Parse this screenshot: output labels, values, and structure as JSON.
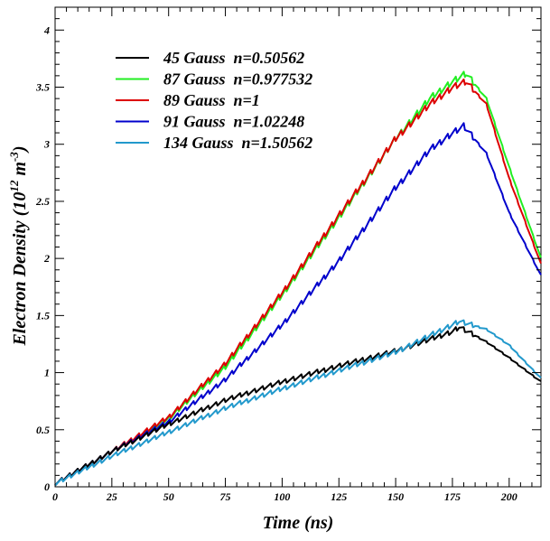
{
  "chart_data": {
    "type": "line",
    "xlabel": "Time (ns)",
    "ylabel_main": "Electron Density (10",
    "ylabel_exp1": "12",
    "ylabel_unit": " m",
    "ylabel_exp2": "-3",
    "ylabel_close": ")",
    "xlim": [
      0,
      214
    ],
    "ylim": [
      0,
      4.2
    ],
    "xticks": [
      0,
      25,
      50,
      75,
      100,
      125,
      150,
      175,
      200
    ],
    "xtick_labels": [
      "0",
      "25",
      "50",
      "75",
      "100",
      "125",
      "150",
      "175",
      "200"
    ],
    "yticks": [
      0,
      0.5,
      1,
      1.5,
      2,
      2.5,
      3,
      3.5,
      4
    ],
    "ytick_labels": [
      "0",
      "0.5",
      "1",
      "1.5",
      "2",
      "2.5",
      "3",
      "3.5",
      "4"
    ],
    "grid": false,
    "legend_position": "top-left",
    "series": [
      {
        "name": "45 Gauss  n=0.50562",
        "color": "#000000",
        "x": [
          0,
          25,
          50,
          75,
          100,
          125,
          150,
          175,
          178,
          190,
          200,
          214
        ],
        "y": [
          0.03,
          0.31,
          0.55,
          0.76,
          0.92,
          1.06,
          1.19,
          1.36,
          1.4,
          1.27,
          1.13,
          0.92
        ]
      },
      {
        "name": "87 Gauss  n=0.977532",
        "color": "#22ee22",
        "x": [
          0,
          25,
          50,
          75,
          100,
          125,
          150,
          165,
          175,
          181,
          190,
          200,
          214
        ],
        "y": [
          0.03,
          0.31,
          0.6,
          1.05,
          1.68,
          2.36,
          3.05,
          3.4,
          3.55,
          3.62,
          3.4,
          2.8,
          2.0
        ]
      },
      {
        "name": "89 Gauss  n=1",
        "color": "#dd0000",
        "x": [
          0,
          25,
          50,
          75,
          100,
          125,
          150,
          165,
          175,
          181,
          190,
          200,
          214
        ],
        "y": [
          0.03,
          0.31,
          0.61,
          1.08,
          1.7,
          2.38,
          3.05,
          3.35,
          3.5,
          3.55,
          3.35,
          2.7,
          1.95
        ]
      },
      {
        "name": "91 Gauss  n=1.02248",
        "color": "#0000cc",
        "x": [
          0,
          25,
          50,
          75,
          100,
          125,
          150,
          165,
          175,
          180,
          190,
          200,
          214
        ],
        "y": [
          0.03,
          0.31,
          0.57,
          0.94,
          1.42,
          1.98,
          2.62,
          2.95,
          3.1,
          3.16,
          2.92,
          2.4,
          1.85
        ]
      },
      {
        "name": "134 Gauss  n=1.50562",
        "color": "#2299cc",
        "x": [
          0,
          25,
          50,
          75,
          100,
          125,
          150,
          175,
          178,
          190,
          200,
          214
        ],
        "y": [
          0.03,
          0.27,
          0.48,
          0.69,
          0.86,
          1.02,
          1.18,
          1.42,
          1.45,
          1.38,
          1.24,
          0.95
        ]
      }
    ]
  }
}
